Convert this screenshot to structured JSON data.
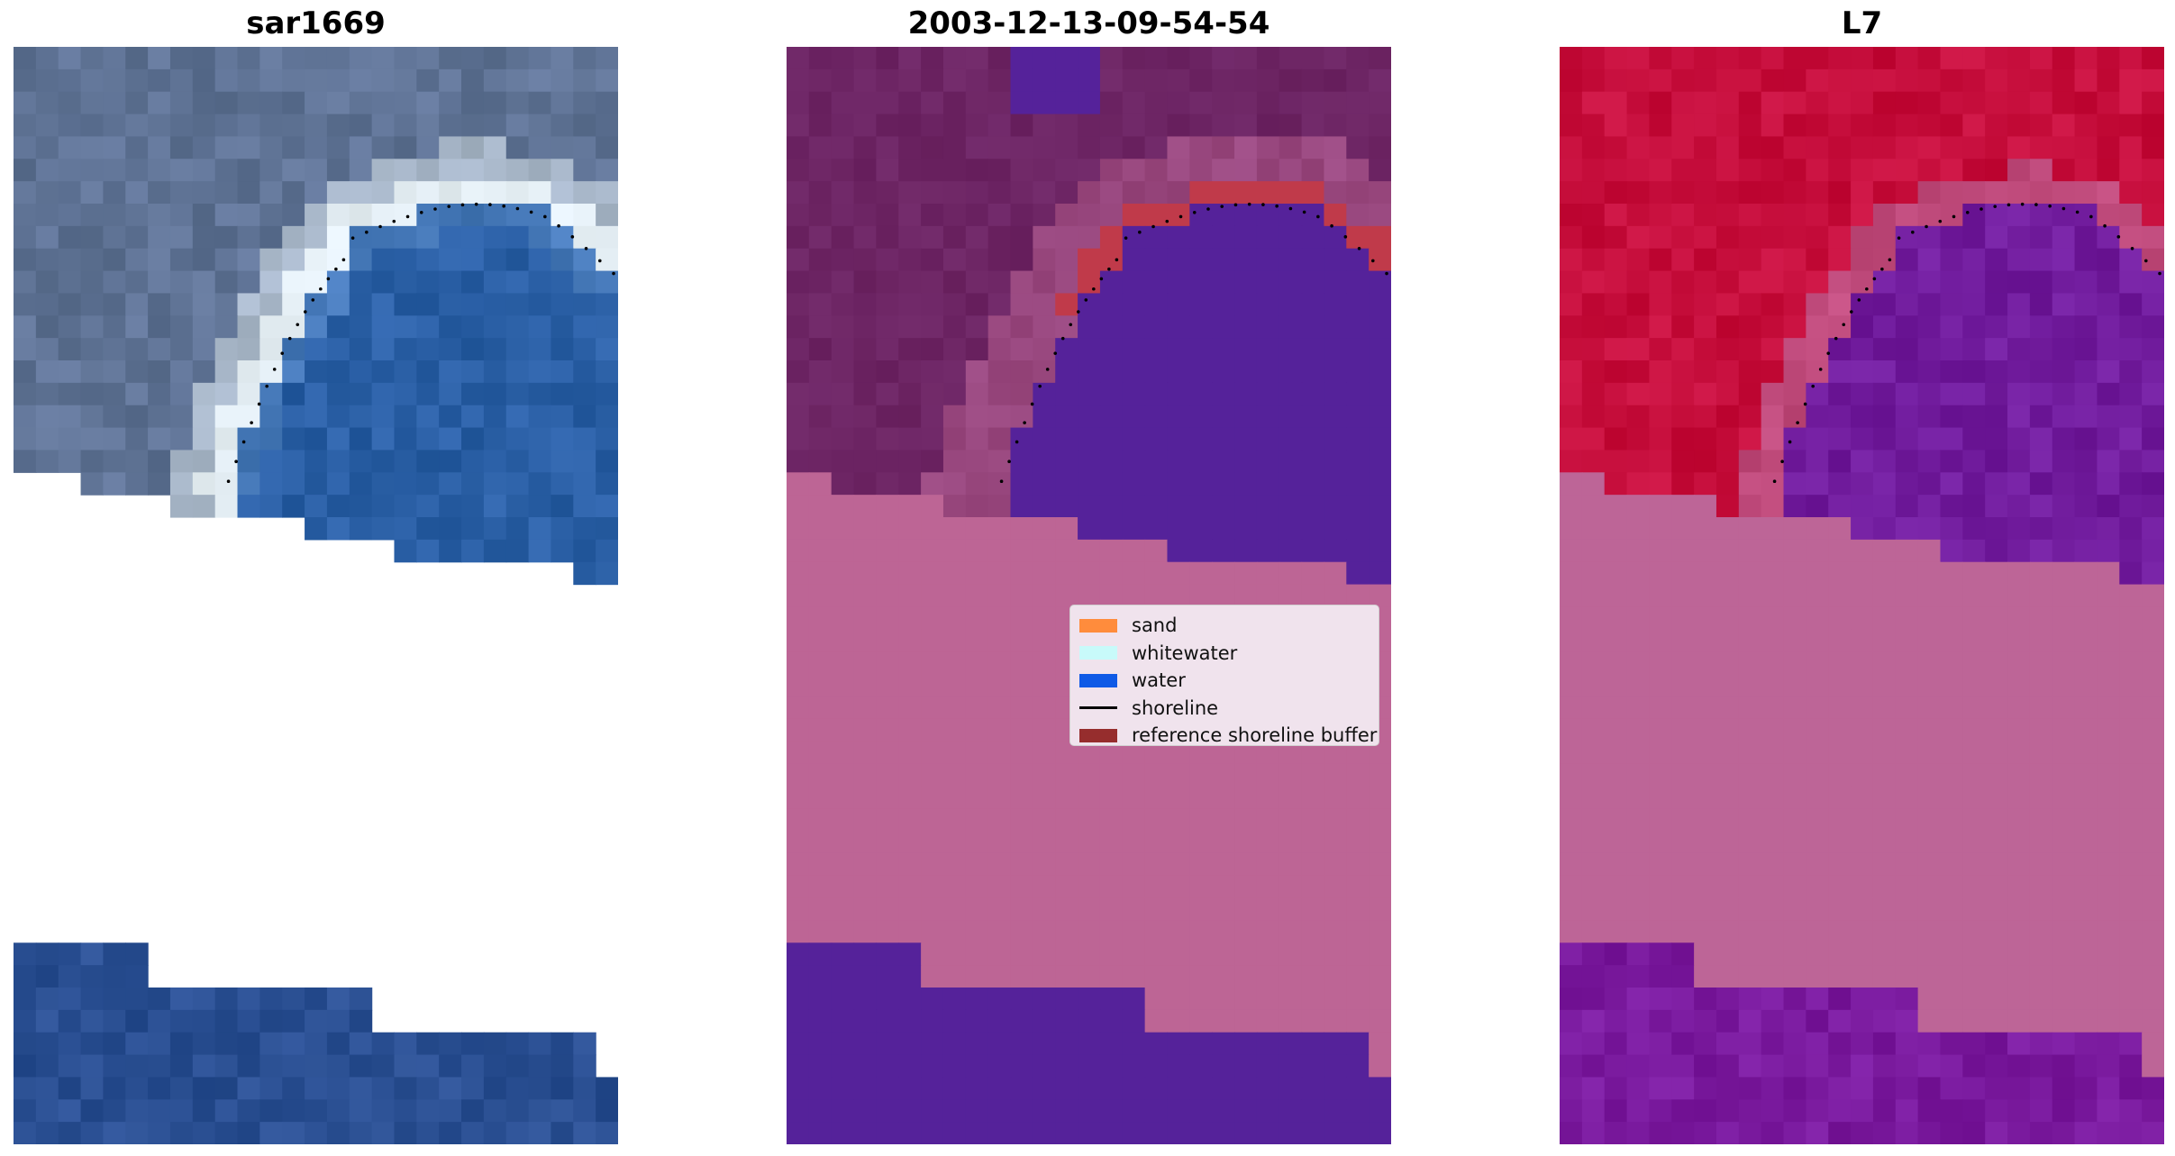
{
  "panels": [
    {
      "title": "sar1669",
      "kind": "rgb",
      "colors": {
        "water": "#2a5fa5",
        "land": "#5f7395",
        "whitewater": "#e4eef4",
        "nodata": "#ffffff"
      }
    },
    {
      "title": "2003-12-13-09-54-54",
      "kind": "classified",
      "colors": {
        "water": "#55229a",
        "land": "#6d2564",
        "sand_class": "#bd6595",
        "buffer": "#c03a4a"
      }
    },
    {
      "title": "L7",
      "kind": "index",
      "colors": {
        "land": "#c60e3c",
        "water": "#7a1a9e",
        "transition": "#bd6597"
      }
    }
  ],
  "legend": {
    "items": [
      {
        "label": "sand",
        "color": "#ff8c3c",
        "type": "patch"
      },
      {
        "label": "whitewater",
        "color": "#c8fafa",
        "type": "patch"
      },
      {
        "label": "water",
        "color": "#0f5ae6",
        "type": "patch"
      },
      {
        "label": "shoreline",
        "color": "#000000",
        "type": "line"
      },
      {
        "label": "reference shoreline buffer",
        "color": "#962d2d",
        "type": "patch"
      }
    ]
  }
}
